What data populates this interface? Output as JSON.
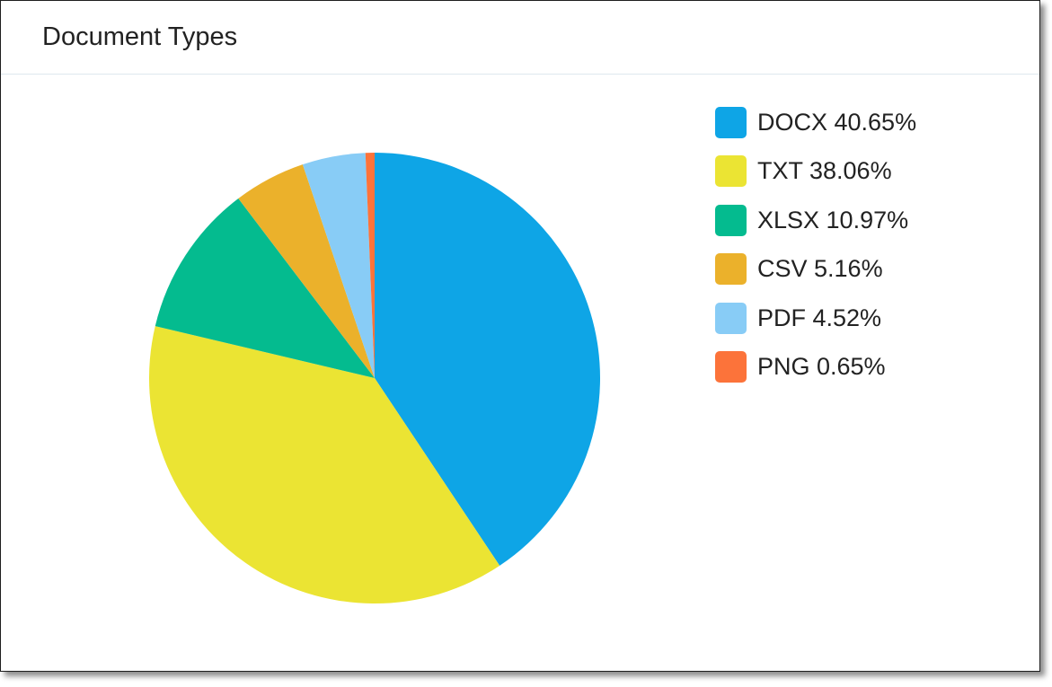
{
  "card": {
    "title": "Document Types"
  },
  "chart_data": {
    "type": "pie",
    "title": "Document Types",
    "legend_position": "right",
    "slices": [
      {
        "label": "DOCX",
        "percent_label": "40.65%",
        "value": 40.65,
        "color": "#0ea5e6"
      },
      {
        "label": "TXT",
        "percent_label": "38.06%",
        "value": 38.06,
        "color": "#ebe433"
      },
      {
        "label": "XLSX",
        "percent_label": "10.97%",
        "value": 10.97,
        "color": "#04bb8f"
      },
      {
        "label": "CSV",
        "percent_label": "5.16%",
        "value": 5.16,
        "color": "#ebb12b"
      },
      {
        "label": "PDF",
        "percent_label": "4.52%",
        "value": 4.52,
        "color": "#88ccf6"
      },
      {
        "label": "PNG",
        "percent_label": "0.65%",
        "value": 0.65,
        "color": "#fc733a"
      }
    ]
  }
}
